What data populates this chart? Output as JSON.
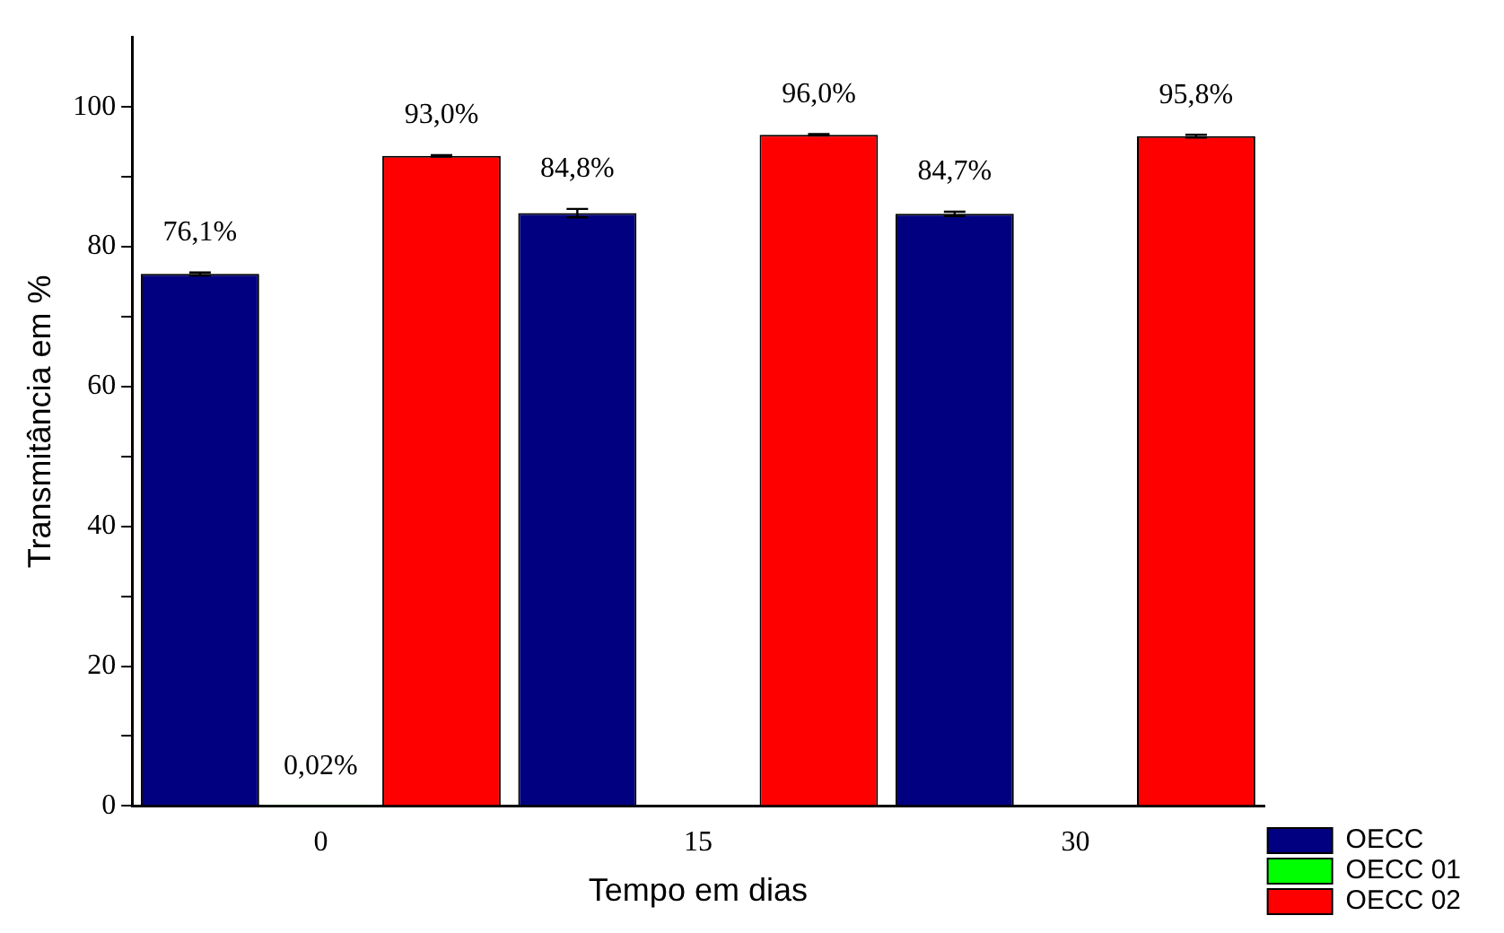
{
  "chart_data": {
    "type": "bar",
    "xlabel": "Tempo em dias",
    "ylabel": "Transmitância em %",
    "categories": [
      "0",
      "15",
      "30"
    ],
    "series": [
      {
        "name": "OECC",
        "color": "#000080",
        "values": [
          76.1,
          84.8,
          84.7
        ],
        "errors": [
          0.2,
          0.6,
          0.3
        ],
        "value_labels": [
          "76,1%",
          "84,8%",
          "84,7%"
        ]
      },
      {
        "name": "OECC 01",
        "color": "#00ff00",
        "values": [
          0.02,
          null,
          null
        ],
        "value_labels": [
          "0,02%",
          null,
          null
        ]
      },
      {
        "name": "OECC 02",
        "color": "#ff0000",
        "values": [
          93.0,
          96.0,
          95.8
        ],
        "errors": [
          0.1,
          0.1,
          0.2
        ],
        "value_labels": [
          "93,0%",
          "96,0%",
          "95,8%"
        ]
      }
    ],
    "ylim": [
      0,
      110
    ],
    "yticks": [
      0,
      {
        "value": 10,
        "label": null
      },
      20,
      {
        "value": 30,
        "label": null
      },
      40,
      {
        "value": 50,
        "label": null
      },
      60,
      {
        "value": 70,
        "label": null
      },
      80,
      {
        "value": 90,
        "label": null
      },
      100
    ],
    "grid": false,
    "legend": "right"
  }
}
